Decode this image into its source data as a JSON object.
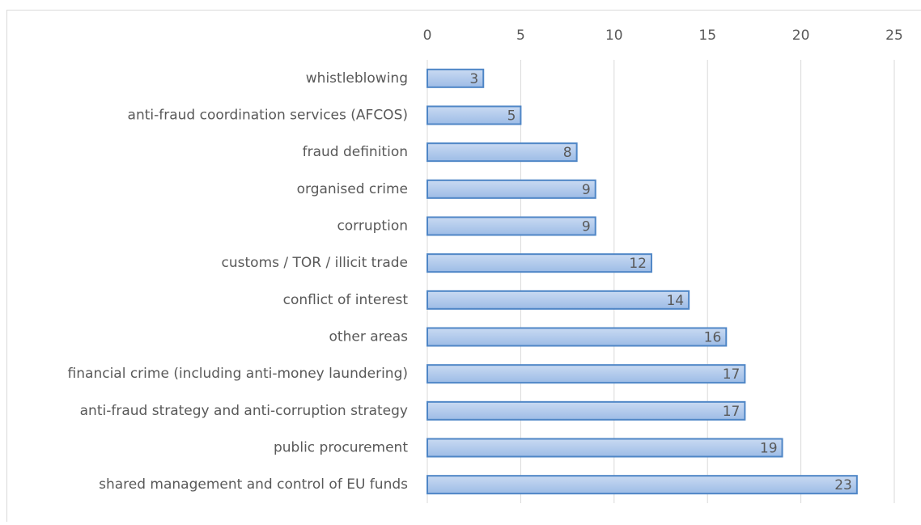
{
  "chart_data": {
    "type": "bar",
    "orientation": "horizontal",
    "categories": [
      "whistleblowing",
      "anti-fraud coordination services (AFCOS)",
      "fraud definition",
      "organised crime",
      "corruption",
      "customs / TOR / illicit trade",
      "conflict of interest",
      "other areas",
      "financial crime (including anti-money laundering)",
      "anti-fraud strategy and anti-corruption strategy",
      "public procurement",
      "shared management and control of EU funds"
    ],
    "values": [
      3,
      5,
      8,
      9,
      9,
      12,
      14,
      16,
      17,
      17,
      19,
      23
    ],
    "color": "#a9c4eb",
    "border_color": "#4f86c6",
    "xlim": [
      0,
      25
    ],
    "xticks": [
      0,
      5,
      10,
      15,
      20,
      25
    ],
    "grid": true,
    "data_labels": true
  }
}
